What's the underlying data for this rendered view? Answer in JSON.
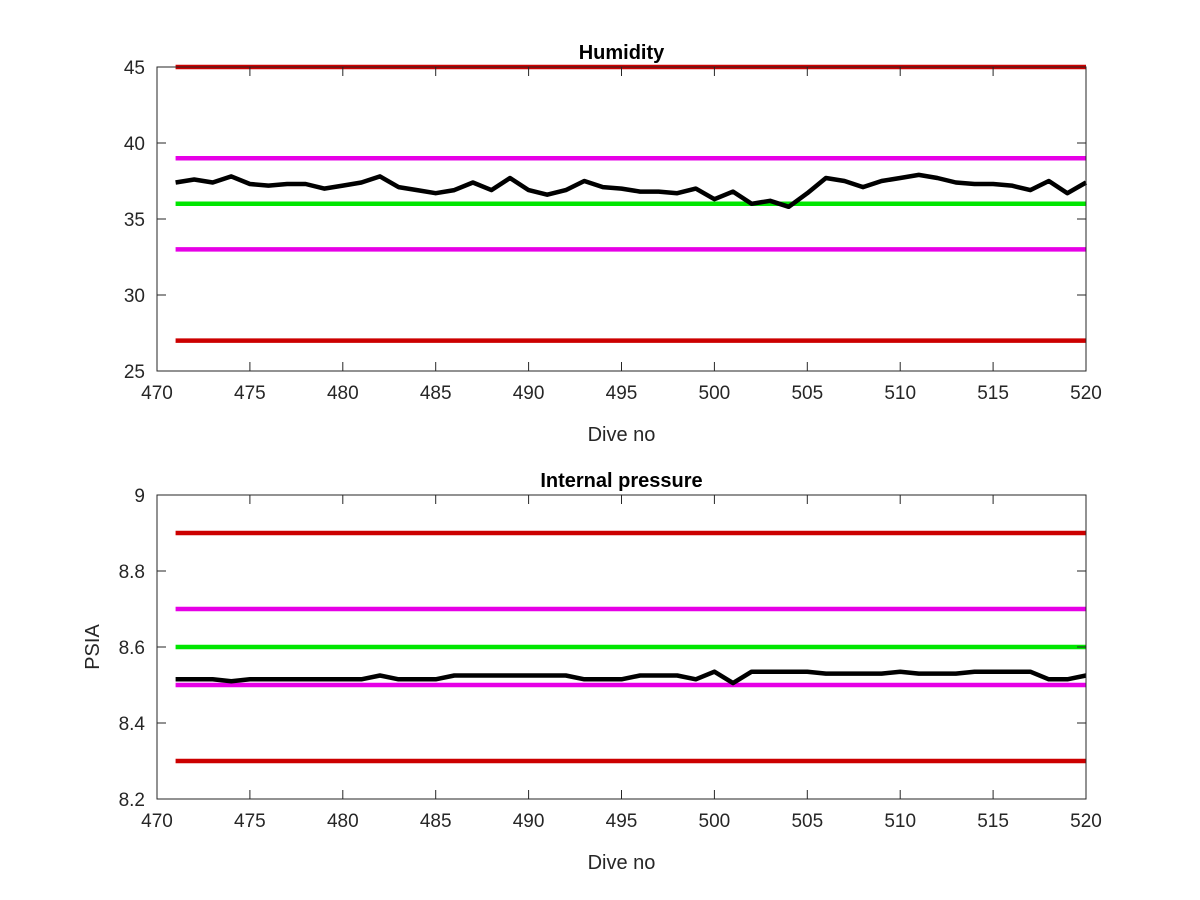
{
  "chart_data": [
    {
      "type": "line",
      "title": "Humidity",
      "xlabel": "Dive no",
      "ylabel": "",
      "xlim": [
        470,
        520
      ],
      "ylim": [
        25,
        45
      ],
      "xticks": [
        470,
        475,
        480,
        485,
        490,
        495,
        500,
        505,
        510,
        515,
        520
      ],
      "yticks": [
        25,
        30,
        35,
        40,
        45
      ],
      "grid": false,
      "reference_lines": [
        {
          "y": 45,
          "color": "#cc0000"
        },
        {
          "y": 39,
          "color": "#e600e6"
        },
        {
          "y": 36,
          "color": "#00e600"
        },
        {
          "y": 33,
          "color": "#e600e6"
        },
        {
          "y": 27,
          "color": "#cc0000"
        }
      ],
      "series": [
        {
          "color": "#000000",
          "x": [
            471,
            472,
            473,
            474,
            475,
            476,
            477,
            478,
            479,
            480,
            481,
            482,
            483,
            484,
            485,
            486,
            487,
            488,
            489,
            490,
            491,
            492,
            493,
            494,
            495,
            496,
            497,
            498,
            499,
            500,
            501,
            502,
            503,
            504,
            505,
            506,
            507,
            508,
            509,
            510,
            511,
            512,
            513,
            514,
            515,
            516,
            517,
            518,
            519,
            520
          ],
          "y": [
            37.4,
            37.6,
            37.4,
            37.8,
            37.3,
            37.2,
            37.3,
            37.3,
            37.0,
            37.2,
            37.4,
            37.8,
            37.1,
            36.9,
            36.7,
            36.9,
            37.4,
            36.9,
            37.7,
            36.9,
            36.6,
            36.9,
            37.5,
            37.1,
            37.0,
            36.8,
            36.8,
            36.7,
            37.0,
            36.3,
            36.8,
            36.0,
            36.2,
            35.8,
            36.7,
            37.7,
            37.5,
            37.1,
            37.5,
            37.7,
            37.9,
            37.7,
            37.4,
            37.3,
            37.3,
            37.2,
            36.9,
            37.5,
            36.7,
            37.4
          ]
        }
      ]
    },
    {
      "type": "line",
      "title": "Internal pressure",
      "xlabel": "Dive no",
      "ylabel": "PSIA",
      "xlim": [
        470,
        520
      ],
      "ylim": [
        8.2,
        9
      ],
      "xticks": [
        470,
        475,
        480,
        485,
        490,
        495,
        500,
        505,
        510,
        515,
        520
      ],
      "yticks": [
        8.2,
        8.4,
        8.6,
        8.8,
        9
      ],
      "grid": false,
      "reference_lines": [
        {
          "y": 8.9,
          "color": "#cc0000"
        },
        {
          "y": 8.7,
          "color": "#e600e6"
        },
        {
          "y": 8.6,
          "color": "#00e600"
        },
        {
          "y": 8.5,
          "color": "#e600e6"
        },
        {
          "y": 8.3,
          "color": "#cc0000"
        }
      ],
      "series": [
        {
          "color": "#000000",
          "x": [
            471,
            472,
            473,
            474,
            475,
            476,
            477,
            478,
            479,
            480,
            481,
            482,
            483,
            484,
            485,
            486,
            487,
            488,
            489,
            490,
            491,
            492,
            493,
            494,
            495,
            496,
            497,
            498,
            499,
            500,
            501,
            502,
            503,
            504,
            505,
            506,
            507,
            508,
            509,
            510,
            511,
            512,
            513,
            514,
            515,
            516,
            517,
            518,
            519,
            520
          ],
          "y": [
            8.515,
            8.515,
            8.515,
            8.51,
            8.515,
            8.515,
            8.515,
            8.515,
            8.515,
            8.515,
            8.515,
            8.525,
            8.515,
            8.515,
            8.515,
            8.525,
            8.525,
            8.525,
            8.525,
            8.525,
            8.525,
            8.525,
            8.515,
            8.515,
            8.515,
            8.525,
            8.525,
            8.525,
            8.515,
            8.535,
            8.505,
            8.535,
            8.535,
            8.535,
            8.535,
            8.53,
            8.53,
            8.53,
            8.53,
            8.535,
            8.53,
            8.53,
            8.53,
            8.535,
            8.535,
            8.535,
            8.535,
            8.515,
            8.515,
            8.525
          ]
        }
      ]
    }
  ]
}
